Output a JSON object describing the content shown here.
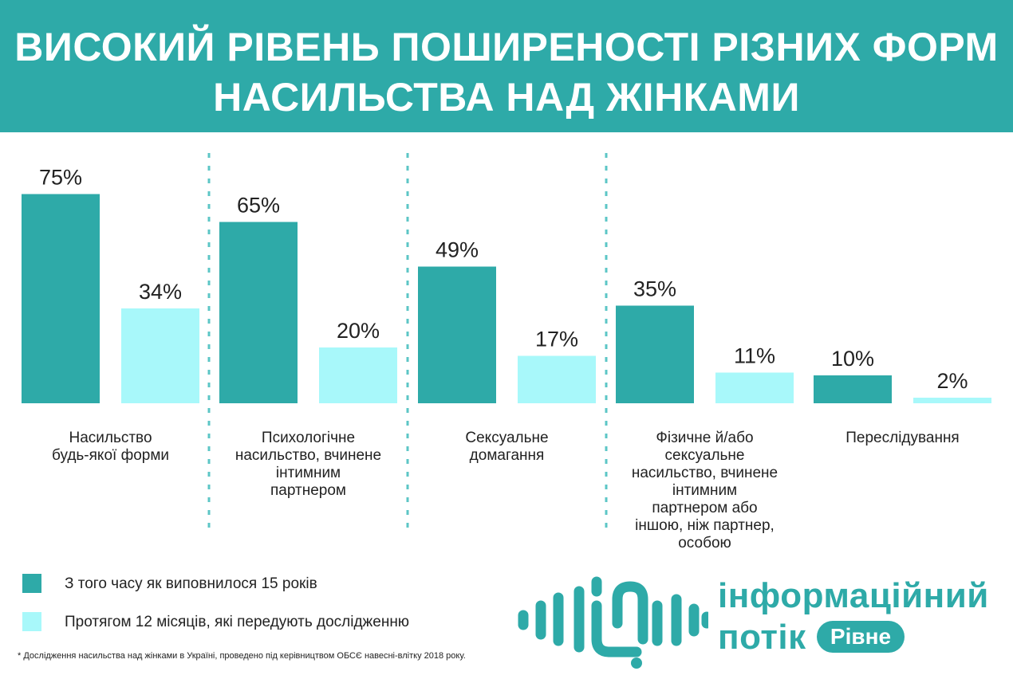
{
  "header": {
    "title_line1": "ВИСОКИЙ РІВЕНЬ ПОШИРЕНОСТІ РІЗНИХ ФОРМ",
    "title_line2": "НАСИЛЬСТВА НАД ЖІНКАМИ"
  },
  "colors": {
    "header_bg": "#2eaaa8",
    "series_since15": "#2eaaa8",
    "series_12months": "#a8f8fa",
    "divider": "#5cc6c6"
  },
  "chart_data": {
    "type": "bar",
    "categories": [
      [
        "Насильство",
        "будь-якої форми"
      ],
      [
        "Психологічне",
        "насильство, вчинене",
        "інтимним",
        "партнером"
      ],
      [
        "Сексуальне",
        "домагання"
      ],
      [
        "Фізичне й/або",
        "сексуальне",
        "насильство, вчинене",
        "інтимним",
        "партнером або",
        "іншою, ніж партнер,",
        "особою"
      ],
      [
        "Переслідування"
      ]
    ],
    "series": [
      {
        "name": "З того часу як виповнилося 15 років",
        "values": [
          75,
          65,
          49,
          35,
          10
        ],
        "labels": [
          "75%",
          "65%",
          "49%",
          "35%",
          "10%"
        ]
      },
      {
        "name": "Протягом 12 місяців, які передують дослідженню",
        "values": [
          34,
          20,
          17,
          11,
          2
        ],
        "labels": [
          "34%",
          "20%",
          "17%",
          "11%",
          "2%"
        ]
      }
    ],
    "ylim": [
      0,
      100
    ],
    "legend": "bottom-left",
    "grid": false
  },
  "legend": {
    "item1": "З того часу як виповнилося 15 років",
    "item2": "Протягом 12 місяців, які передують дослідженню"
  },
  "footnote": "* Дослідження насильства над жінками в Україні, проведено під керівництвом ОБСЄ навесні-влітку 2018 року.",
  "logo": {
    "line1": "інформаційний",
    "line2": "потік",
    "badge": "Рівне"
  }
}
